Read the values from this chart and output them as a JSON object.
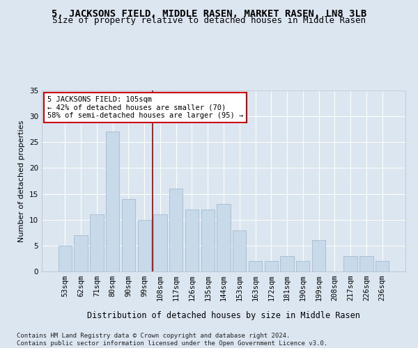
{
  "title": "5, JACKSONS FIELD, MIDDLE RASEN, MARKET RASEN, LN8 3LB",
  "subtitle": "Size of property relative to detached houses in Middle Rasen",
  "xlabel": "Distribution of detached houses by size in Middle Rasen",
  "ylabel": "Number of detached properties",
  "categories": [
    "53sqm",
    "62sqm",
    "71sqm",
    "80sqm",
    "90sqm",
    "99sqm",
    "108sqm",
    "117sqm",
    "126sqm",
    "135sqm",
    "144sqm",
    "153sqm",
    "163sqm",
    "172sqm",
    "181sqm",
    "190sqm",
    "199sqm",
    "208sqm",
    "217sqm",
    "226sqm",
    "236sqm"
  ],
  "values": [
    5,
    7,
    11,
    27,
    14,
    10,
    11,
    16,
    12,
    12,
    13,
    8,
    2,
    2,
    3,
    2,
    6,
    0,
    3,
    3,
    2
  ],
  "bar_color": "#c8d9ea",
  "bar_edge_color": "#9ab4cc",
  "vline_x": 5.5,
  "vline_color": "#990000",
  "annotation_text": "5 JACKSONS FIELD: 105sqm\n← 42% of detached houses are smaller (70)\n58% of semi-detached houses are larger (95) →",
  "annotation_box_color": "white",
  "annotation_box_edge": "#cc0000",
  "ylim": [
    0,
    35
  ],
  "yticks": [
    0,
    5,
    10,
    15,
    20,
    25,
    30,
    35
  ],
  "background_color": "#dce6f0",
  "grid_color": "white",
  "footnote": "Contains HM Land Registry data © Crown copyright and database right 2024.\nContains public sector information licensed under the Open Government Licence v3.0.",
  "title_fontsize": 10,
  "subtitle_fontsize": 9,
  "xlabel_fontsize": 8.5,
  "ylabel_fontsize": 8,
  "tick_fontsize": 7.5,
  "annot_fontsize": 7.5,
  "footnote_fontsize": 6.5
}
